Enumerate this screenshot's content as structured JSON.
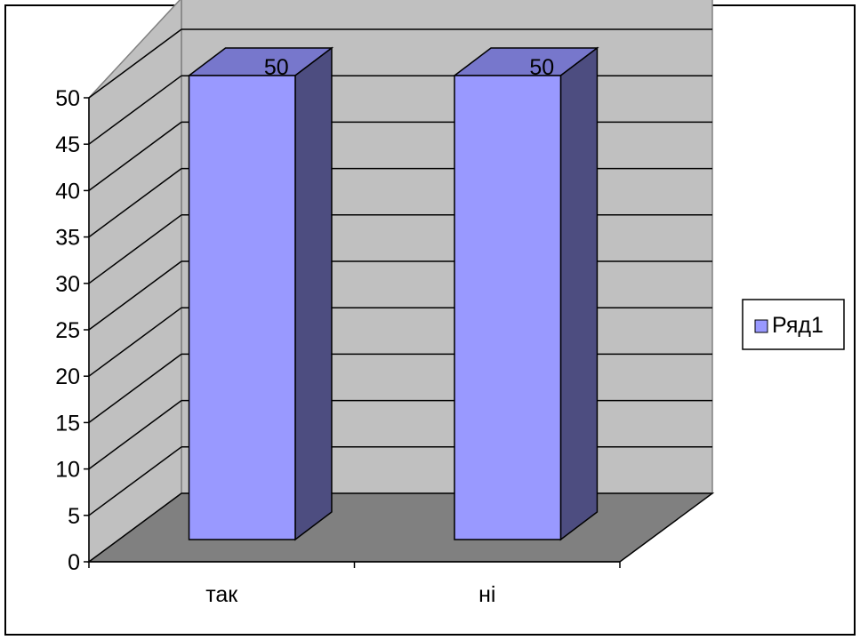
{
  "chart_data": {
    "type": "bar",
    "variant": "3d-column",
    "categories": [
      "так",
      "ні"
    ],
    "series": [
      {
        "name": "Ряд1",
        "values": [
          50,
          50
        ]
      }
    ],
    "ylim": [
      0,
      50
    ],
    "yticks": [
      0,
      5,
      10,
      15,
      20,
      25,
      30,
      35,
      40,
      45,
      50
    ],
    "data_labels": [
      "50",
      "50"
    ],
    "grid": true,
    "legend_position": "right"
  },
  "colors": {
    "bar_front": "#9999ff",
    "bar_top": "#7777cc",
    "bar_side": "#4d4d80",
    "back_wall": "#c0c0c0",
    "side_wall": "#c0c0c0",
    "floor": "#808080",
    "border": "#000000"
  }
}
